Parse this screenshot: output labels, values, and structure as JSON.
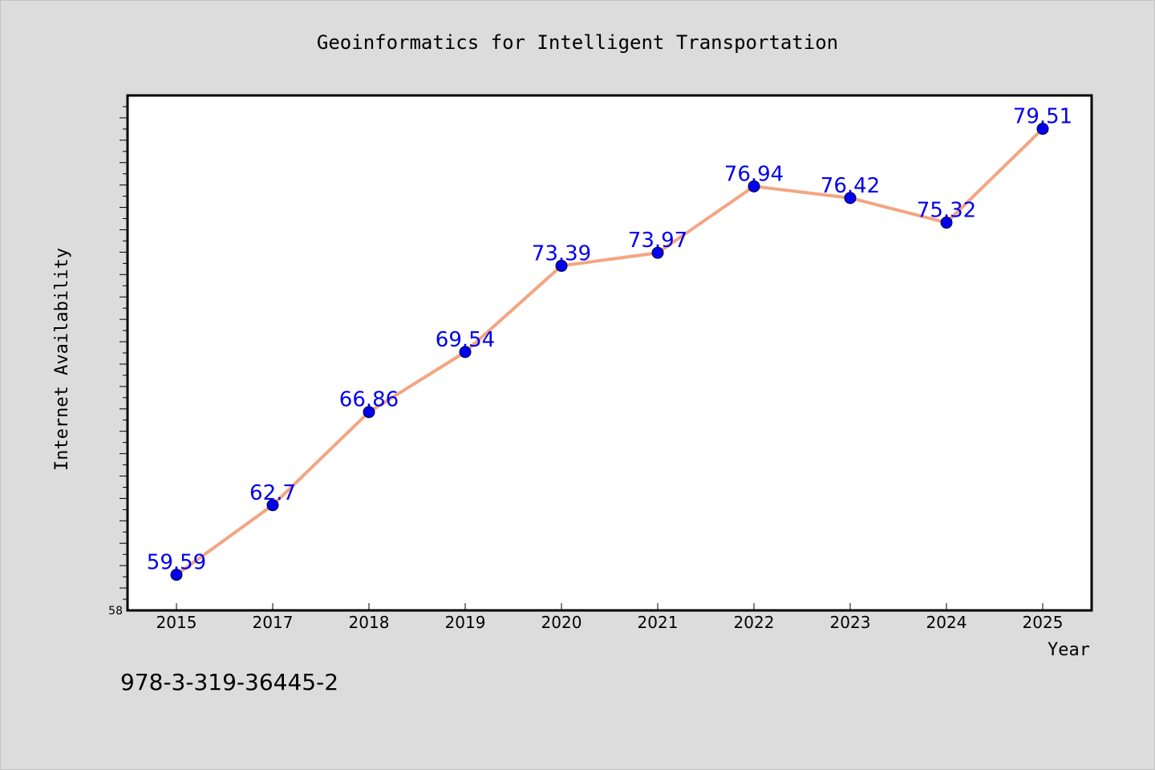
{
  "chart_data": {
    "type": "line",
    "title": "Geoinformatics for Intelligent Transportation",
    "xlabel": "Year",
    "ylabel": "Internet Availability",
    "categories": [
      "2015",
      "2017",
      "2018",
      "2019",
      "2020",
      "2021",
      "2022",
      "2023",
      "2024",
      "2025"
    ],
    "series": [
      {
        "values": [
          59.59,
          62.7,
          66.86,
          69.54,
          73.39,
          73.97,
          76.94,
          76.42,
          75.32,
          79.51
        ],
        "labels": [
          "59.59",
          "62.7",
          "66.86",
          "69.54",
          "73.39",
          "73.97",
          "76.94",
          "76.42",
          "75.32",
          "79.51"
        ],
        "line_color": "#f4a582",
        "marker_color": "#0000ee",
        "label_color": "#0000ee"
      }
    ],
    "ylim": [
      58,
      81
    ],
    "y_tick_labels": [
      "58"
    ],
    "grid": false
  },
  "footer_text": "978-3-319-36445-2"
}
